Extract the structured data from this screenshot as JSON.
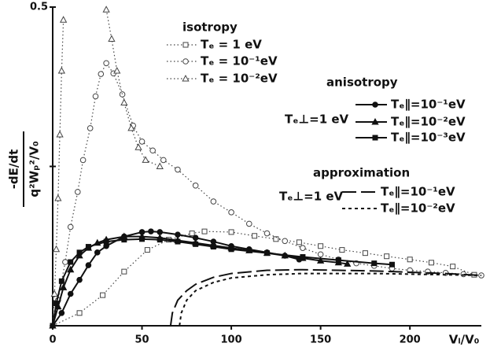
{
  "chart_data": {
    "type": "line",
    "x_label": "Vₗ/V₀",
    "y_label_numerator": "-dE/dt",
    "y_label_denominator": "q²Wₚ²/V₀",
    "xlim": [
      0,
      240
    ],
    "ylim": [
      0,
      0.5
    ],
    "xticks": [
      0,
      50,
      100,
      150,
      200
    ],
    "yticks": [
      {
        "value": 0.25,
        "label": null
      },
      0.5
    ],
    "groups": [
      {
        "title": "isotropy",
        "subtitle": null,
        "series": [
          {
            "name": "Tₑ = 1 eV",
            "color": "#444",
            "marker": "square",
            "filled": false,
            "dash": "dotted",
            "x": [
              0,
              15,
              28,
              40,
              53,
              65,
              78,
              85,
              100,
              113,
              125,
              138,
              150,
              162,
              175,
              187,
              200,
              212,
              224,
              236
            ],
            "values": [
              0,
              0.02,
              0.048,
              0.085,
              0.119,
              0.135,
              0.145,
              0.148,
              0.147,
              0.141,
              0.136,
              0.131,
              0.125,
              0.119,
              0.114,
              0.109,
              0.104,
              0.099,
              0.093,
              0.08
            ]
          },
          {
            "name": "Tₑ = 10⁻¹eV",
            "color": "#444",
            "marker": "circle",
            "filled": false,
            "dash": "dotted",
            "x": [
              0,
              3,
              7,
              10,
              14,
              17,
              21,
              24,
              27,
              30,
              34,
              39,
              45,
              50,
              56,
              62,
              70,
              80,
              90,
              100,
              110,
              120,
              130,
              140,
              150,
              160,
              170,
              180,
              190,
              200,
              210,
              220,
              230,
              240
            ],
            "values": [
              0,
              0.04,
              0.1,
              0.155,
              0.21,
              0.26,
              0.31,
              0.36,
              0.395,
              0.412,
              0.396,
              0.363,
              0.314,
              0.289,
              0.275,
              0.26,
              0.245,
              0.22,
              0.195,
              0.178,
              0.16,
              0.145,
              0.133,
              0.122,
              0.112,
              0.104,
              0.098,
              0.094,
              0.09,
              0.087,
              0.085,
              0.083,
              0.081,
              0.079
            ]
          },
          {
            "name": "Tₑ = 10⁻²eV",
            "color": "#444",
            "marker": "triangle",
            "filled": false,
            "dash": "dotted",
            "x": [
              0,
              1,
              2,
              3,
              4,
              5,
              6,
              18,
              30,
              33,
              36,
              40,
              44,
              48,
              52,
              60
            ],
            "values": [
              0,
              0.05,
              0.12,
              0.2,
              0.3,
              0.4,
              0.48,
              null,
              0.496,
              0.45,
              0.4,
              0.35,
              0.31,
              0.28,
              0.26,
              0.25
            ]
          }
        ]
      },
      {
        "title": "anisotropy",
        "subtitle": "Tₑ⊥=1 eV",
        "series": [
          {
            "name": "Tₑ∥=10⁻¹eV",
            "color": "#111",
            "marker": "circle",
            "filled": true,
            "dash": "solid",
            "x": [
              0,
              5,
              10,
              15,
              20,
              25,
              30,
              40,
              50,
              55,
              60,
              70,
              80,
              90,
              100,
              110,
              120,
              130,
              138
            ],
            "values": [
              0,
              0.02,
              0.05,
              0.072,
              0.095,
              0.115,
              0.125,
              0.14,
              0.147,
              0.148,
              0.147,
              0.143,
              0.138,
              0.132,
              0.125,
              0.12,
              0.115,
              0.11,
              0.104
            ]
          },
          {
            "name": "Tₑ∥=10⁻²eV",
            "color": "#111",
            "marker": "triangle",
            "filled": true,
            "dash": "solid",
            "x": [
              0,
              3,
              6,
              10,
              15,
              20,
              25,
              30,
              40,
              50,
              60,
              70,
              80,
              90,
              100,
              110,
              120,
              130,
              140,
              150,
              160,
              165
            ],
            "values": [
              0,
              0.03,
              0.06,
              0.088,
              0.11,
              0.122,
              0.13,
              0.135,
              0.14,
              0.14,
              0.138,
              0.134,
              0.13,
              0.126,
              0.122,
              0.118,
              0.114,
              0.11,
              0.106,
              0.102,
              0.099,
              0.097
            ]
          },
          {
            "name": "Tₑ∥=10⁻³eV",
            "color": "#111",
            "marker": "square",
            "filled": true,
            "dash": "solid",
            "x": [
              0,
              2,
              5,
              10,
              15,
              20,
              30,
              40,
              50,
              60,
              70,
              80,
              90,
              100,
              120,
              140,
              160,
              180,
              190
            ],
            "values": [
              0,
              0.035,
              0.07,
              0.1,
              0.115,
              0.124,
              0.132,
              0.135,
              0.136,
              0.135,
              0.132,
              0.128,
              0.124,
              0.12,
              0.114,
              0.108,
              0.103,
              0.098,
              0.096
            ]
          }
        ]
      },
      {
        "title": "approximation",
        "subtitle": "Tₑ⊥=1 eV",
        "series": [
          {
            "name": "Tₑ∥=10⁻¹eV",
            "color": "#111",
            "marker": null,
            "filled": false,
            "dash": "long",
            "x": [
              66,
              67,
              70,
              75,
              80,
              90,
              100,
              120,
              140,
              160,
              180,
              200,
              220,
              240
            ],
            "values": [
              0,
              0.02,
              0.04,
              0.055,
              0.065,
              0.076,
              0.082,
              0.087,
              0.088,
              0.087,
              0.086,
              0.084,
              0.082,
              0.079
            ]
          },
          {
            "name": "Tₑ∥=10⁻²eV",
            "color": "#111",
            "marker": null,
            "filled": false,
            "dash": "short",
            "x": [
              71,
              72,
              75,
              80,
              90,
              100,
              120,
              140,
              160,
              180,
              200,
              220,
              240
            ],
            "values": [
              0,
              0.02,
              0.04,
              0.055,
              0.068,
              0.075,
              0.08,
              0.082,
              0.082,
              0.082,
              0.081,
              0.08,
              0.079
            ]
          }
        ]
      }
    ]
  }
}
